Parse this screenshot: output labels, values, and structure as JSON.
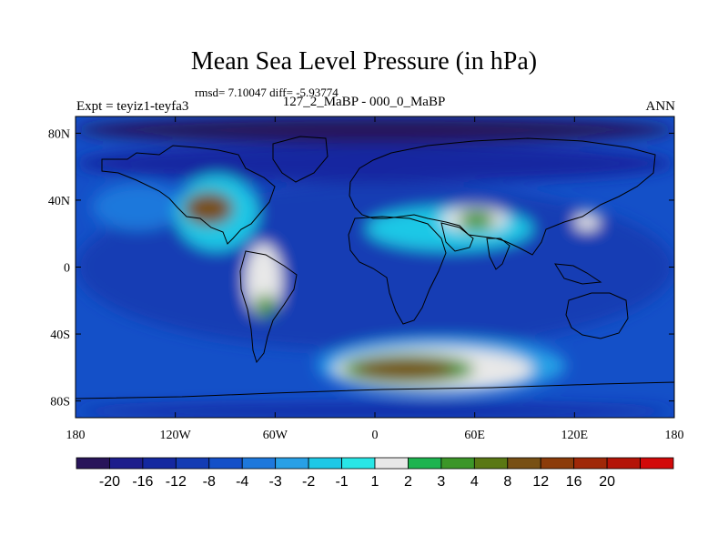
{
  "title": "Mean Sea Level Pressure (in hPa)",
  "stats": "rmsd= 7.10047 diff= -5.93774",
  "left_label": "Expt = teyiz1-teyfa3",
  "center_label": "127_2_MaBP - 000_0_MaBP",
  "right_label": "ANN",
  "map": {
    "lat_ticks": [
      {
        "value": 80,
        "label": "80N"
      },
      {
        "value": 40,
        "label": "40N"
      },
      {
        "value": 0,
        "label": "0"
      },
      {
        "value": -40,
        "label": "40S"
      },
      {
        "value": -80,
        "label": "80S"
      }
    ],
    "lon_ticks": [
      {
        "value": -180,
        "label": "180"
      },
      {
        "value": -120,
        "label": "120W"
      },
      {
        "value": -60,
        "label": "60W"
      },
      {
        "value": 0,
        "label": "0"
      },
      {
        "value": 60,
        "label": "60E"
      },
      {
        "value": 120,
        "label": "120E"
      },
      {
        "value": 180,
        "label": "180"
      }
    ],
    "field": [
      {
        "lon": -180,
        "lat": 90,
        "w": 360,
        "h": 16,
        "level": "<-20"
      },
      {
        "lon": -180,
        "lat": 74,
        "w": 360,
        "h": 24,
        "level": "-16 to -12"
      },
      {
        "lon": -180,
        "lat": 50,
        "w": 360,
        "h": 100,
        "level": "-12 to -8"
      },
      {
        "lon": -170,
        "lat": 50,
        "w": 55,
        "h": 28,
        "level": "-4 to -3"
      },
      {
        "lon": -120,
        "lat": 55,
        "w": 50,
        "h": 45,
        "level": "-2 to -1"
      },
      {
        "lon": -115,
        "lat": 45,
        "w": 30,
        "h": 20,
        "level": "4 to 8"
      },
      {
        "lon": -78,
        "lat": 14,
        "w": 22,
        "h": 44,
        "level": "-1 to 1"
      },
      {
        "lon": -72,
        "lat": -16,
        "w": 12,
        "h": 14,
        "level": "2 to 3"
      },
      {
        "lon": -5,
        "lat": 36,
        "w": 100,
        "h": 26,
        "level": "-2 to -1"
      },
      {
        "lon": 40,
        "lat": 36,
        "w": 40,
        "h": 15,
        "level": "-1 to 1"
      },
      {
        "lon": 50,
        "lat": 34,
        "w": 22,
        "h": 12,
        "level": "2 to 3"
      },
      {
        "lon": -35,
        "lat": -42,
        "w": 150,
        "h": 34,
        "level": "-3 to -2"
      },
      {
        "lon": -25,
        "lat": -48,
        "w": 120,
        "h": 26,
        "level": "-1 to 1"
      },
      {
        "lon": -20,
        "lat": -52,
        "w": 80,
        "h": 18,
        "level": "2 to 3"
      },
      {
        "lon": -12,
        "lat": -55,
        "w": 60,
        "h": 12,
        "level": "4 to 8"
      },
      {
        "lon": 120,
        "lat": 32,
        "w": 15,
        "h": 10,
        "level": "-1 to 1"
      },
      {
        "lon": -180,
        "lat": -82,
        "w": 360,
        "h": 8,
        "level": "-16 to -12"
      }
    ]
  },
  "colorbar": {
    "colors": [
      "#28145a",
      "#1e1e8c",
      "#1428a0",
      "#143cb4",
      "#1450c8",
      "#1e78dc",
      "#28a0e6",
      "#1ec8e6",
      "#28e6e6",
      "#e8e8e8",
      "#1eb450",
      "#3c9628",
      "#5a7814",
      "#785014",
      "#8c3c0a",
      "#a02808",
      "#b41408",
      "#d20a0a"
    ],
    "labels": [
      "-20",
      "-16",
      "-12",
      "-8",
      "-4",
      "-3",
      "-2",
      "-1",
      "1",
      "2",
      "3",
      "4",
      "8",
      "12",
      "16",
      "20"
    ]
  },
  "colors": {
    "land_outline": "#000000",
    "background": "#ffffff"
  }
}
